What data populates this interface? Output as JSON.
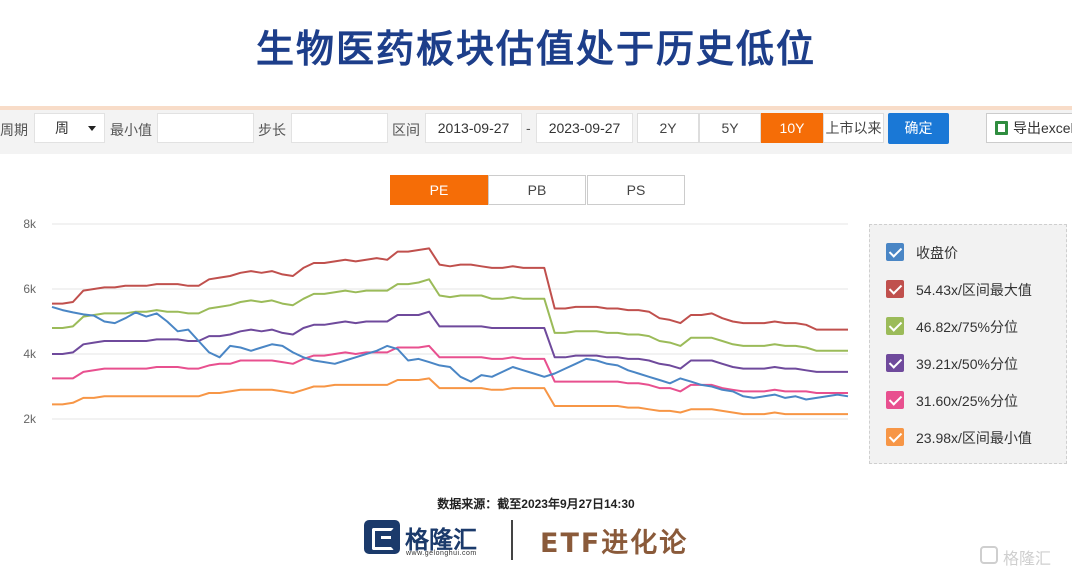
{
  "title": "生物医药板块估值处于历史低位",
  "toolbar": {
    "period_label": "周期",
    "period_value": "周",
    "min_label": "最小值",
    "min_value": "",
    "step_label": "步长",
    "step_value": "",
    "range_label": "区间",
    "start_date": "2013-09-27",
    "dash": "-",
    "end_date": "2023-09-27",
    "range_buttons": [
      "2Y",
      "5Y",
      "10Y",
      "上市以来"
    ],
    "active_range": "10Y",
    "confirm_label": "确定",
    "export_label": "导出excel"
  },
  "tabs": {
    "items": [
      "PE",
      "PB",
      "PS"
    ],
    "active": "PE"
  },
  "legend": [
    {
      "label": "收盘价",
      "color": "#4a86c5"
    },
    {
      "label": "54.43x/区间最大值",
      "color": "#c0504d"
    },
    {
      "label": "46.82x/75%分位",
      "color": "#9bbb59"
    },
    {
      "label": "39.21x/50%分位",
      "color": "#6f4a9c"
    },
    {
      "label": "31.60x/25%分位",
      "color": "#e8508f"
    },
    {
      "label": "23.98x/区间最小值",
      "color": "#f79646"
    }
  ],
  "source": "数据来源：截至2023年9月27日14:30",
  "logo": {
    "name": "格隆汇",
    "url": "www.gelonghui.com",
    "etf": "ETF进化论"
  },
  "watermark": "格隆汇",
  "chart_data": {
    "type": "line",
    "yticks": [
      "8k",
      "6k",
      "4k",
      "2k"
    ],
    "ylim": [
      2000,
      8000
    ],
    "series": [
      {
        "name": "收盘价",
        "color": "#4a86c5",
        "values": [
          5450,
          5350,
          5280,
          5220,
          5180,
          5000,
          4950,
          5100,
          5280,
          5150,
          5250,
          5000,
          4700,
          4750,
          4400,
          4050,
          3900,
          4250,
          4200,
          4100,
          4200,
          4300,
          4250,
          4050,
          3900,
          3800,
          3750,
          3700,
          3800,
          3900,
          4000,
          4100,
          4250,
          4150,
          3800,
          3850,
          3750,
          3650,
          3600,
          3300,
          3150,
          3350,
          3300,
          3450,
          3600,
          3500,
          3400,
          3300,
          3400,
          3550,
          3700,
          3850,
          3800,
          3700,
          3650,
          3500,
          3400,
          3300,
          3200,
          3100,
          3250,
          3150,
          3050,
          3000,
          2900,
          2850,
          2700,
          2650,
          2700,
          2750,
          2650,
          2700,
          2600,
          2650,
          2700,
          2750,
          2700
        ]
      },
      {
        "name": "54.43x/区间最大值",
        "color": "#c0504d",
        "values": [
          5550,
          5550,
          5600,
          5950,
          6000,
          6050,
          6050,
          6100,
          6100,
          6100,
          6150,
          6150,
          6150,
          6100,
          6100,
          6300,
          6350,
          6400,
          6500,
          6550,
          6500,
          6550,
          6450,
          6400,
          6650,
          6800,
          6800,
          6850,
          6900,
          6850,
          6900,
          6950,
          6900,
          7150,
          7150,
          7200,
          7250,
          6750,
          6700,
          6750,
          6750,
          6700,
          6650,
          6650,
          6700,
          6650,
          6650,
          6650,
          5400,
          5400,
          5450,
          5450,
          5450,
          5400,
          5400,
          5350,
          5350,
          5300,
          5100,
          5050,
          4950,
          5200,
          5200,
          5250,
          5100,
          5000,
          4950,
          4950,
          4950,
          5000,
          4950,
          4950,
          4900,
          4750,
          4750,
          4750,
          4750
        ]
      },
      {
        "name": "46.82x/75%分位",
        "color": "#9bbb59",
        "values": [
          4800,
          4800,
          4850,
          5150,
          5200,
          5250,
          5250,
          5250,
          5300,
          5300,
          5350,
          5300,
          5300,
          5250,
          5250,
          5400,
          5450,
          5500,
          5600,
          5650,
          5600,
          5650,
          5550,
          5500,
          5700,
          5850,
          5850,
          5900,
          5950,
          5900,
          5950,
          5950,
          5950,
          6150,
          6150,
          6200,
          6300,
          5800,
          5750,
          5800,
          5800,
          5800,
          5700,
          5700,
          5750,
          5700,
          5700,
          5700,
          4650,
          4650,
          4700,
          4700,
          4700,
          4650,
          4650,
          4600,
          4600,
          4550,
          4400,
          4350,
          4250,
          4500,
          4500,
          4500,
          4400,
          4300,
          4250,
          4250,
          4250,
          4300,
          4250,
          4250,
          4200,
          4100,
          4100,
          4100,
          4100
        ]
      },
      {
        "name": "39.21x/50%分位",
        "color": "#6f4a9c",
        "values": [
          4000,
          4000,
          4050,
          4300,
          4350,
          4400,
          4400,
          4400,
          4400,
          4400,
          4450,
          4450,
          4450,
          4400,
          4400,
          4550,
          4550,
          4600,
          4700,
          4750,
          4700,
          4750,
          4650,
          4600,
          4800,
          4900,
          4900,
          4950,
          5000,
          4950,
          5000,
          5000,
          5000,
          5200,
          5200,
          5200,
          5300,
          4850,
          4850,
          4850,
          4850,
          4850,
          4800,
          4800,
          4800,
          4800,
          4800,
          4800,
          3900,
          3900,
          3950,
          3950,
          3950,
          3900,
          3900,
          3850,
          3850,
          3800,
          3700,
          3650,
          3550,
          3800,
          3800,
          3800,
          3700,
          3600,
          3550,
          3550,
          3550,
          3600,
          3550,
          3550,
          3500,
          3450,
          3450,
          3450,
          3450
        ]
      },
      {
        "name": "31.60x/25%分位",
        "color": "#e8508f",
        "values": [
          3250,
          3250,
          3250,
          3450,
          3500,
          3550,
          3550,
          3550,
          3550,
          3550,
          3600,
          3600,
          3600,
          3550,
          3550,
          3650,
          3700,
          3700,
          3800,
          3800,
          3800,
          3800,
          3750,
          3700,
          3850,
          3950,
          3950,
          4000,
          4050,
          4000,
          4050,
          4050,
          4050,
          4200,
          4200,
          4200,
          4250,
          3900,
          3900,
          3900,
          3900,
          3900,
          3850,
          3850,
          3900,
          3850,
          3850,
          3850,
          3150,
          3150,
          3150,
          3150,
          3150,
          3150,
          3150,
          3100,
          3100,
          3050,
          2950,
          2950,
          2850,
          3050,
          3050,
          3050,
          2950,
          2900,
          2850,
          2850,
          2850,
          2900,
          2850,
          2850,
          2850,
          2800,
          2800,
          2800,
          2800
        ]
      },
      {
        "name": "23.98x/区间最小值",
        "color": "#f79646",
        "values": [
          2450,
          2450,
          2500,
          2650,
          2650,
          2700,
          2700,
          2700,
          2700,
          2700,
          2700,
          2700,
          2700,
          2700,
          2700,
          2800,
          2800,
          2850,
          2900,
          2900,
          2900,
          2900,
          2850,
          2800,
          2900,
          3000,
          3000,
          3050,
          3050,
          3050,
          3050,
          3050,
          3050,
          3200,
          3200,
          3200,
          3250,
          2950,
          2950,
          2950,
          2950,
          2950,
          2900,
          2900,
          2950,
          2950,
          2950,
          2950,
          2400,
          2400,
          2400,
          2400,
          2400,
          2400,
          2400,
          2350,
          2350,
          2300,
          2250,
          2250,
          2200,
          2300,
          2300,
          2300,
          2250,
          2200,
          2150,
          2150,
          2150,
          2200,
          2150,
          2150,
          2150,
          2150,
          2150,
          2150,
          2150
        ]
      }
    ]
  }
}
